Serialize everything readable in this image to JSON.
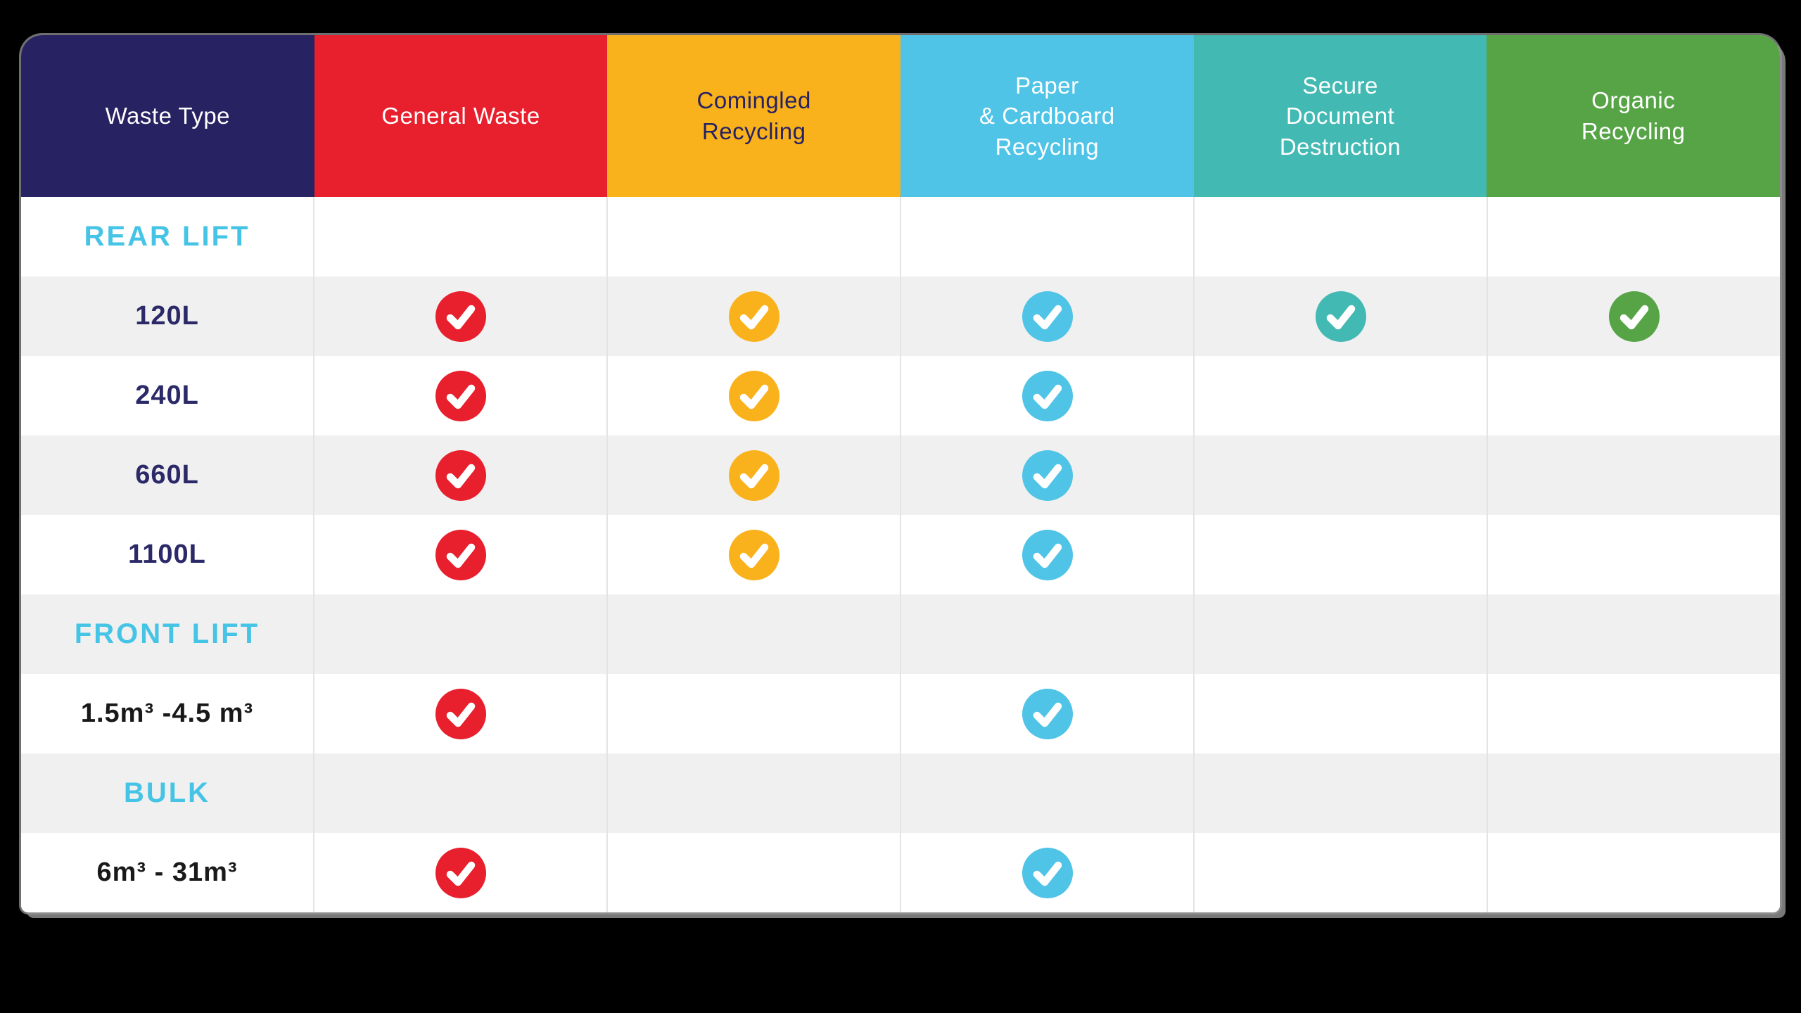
{
  "page": {
    "background_color": "#000000"
  },
  "card": {
    "background_color": "#FFFFFF",
    "shadow_color": "#8E8E8E"
  },
  "colors": {
    "divider": "#E4E4E4",
    "row_white": "#FFFFFF",
    "row_gray": "#F0F0F0",
    "section_label": "#45C4E6",
    "bin_label": "#2B2967",
    "volume_label": "#191919"
  },
  "header": {
    "columns": [
      {
        "id": "waste-type",
        "lines": [
          "Waste Type"
        ],
        "bg": "#272262",
        "fg": "#FFFFFF"
      },
      {
        "id": "general-waste",
        "lines": [
          "General Waste"
        ],
        "bg": "#E81F2D",
        "fg": "#FFFFFF"
      },
      {
        "id": "comingled-recycling",
        "lines": [
          "Comingled",
          "Recycling"
        ],
        "bg": "#FAB21C",
        "fg": "#272262"
      },
      {
        "id": "paper-cardboard-recycling",
        "lines": [
          "Paper",
          "& Cardboard",
          "Recycling"
        ],
        "bg": "#4FC4E7",
        "fg": "#FFFFFF"
      },
      {
        "id": "secure-document-destruction",
        "lines": [
          "Secure",
          "Document",
          "Destruction"
        ],
        "bg": "#42B9B2",
        "fg": "#FFFFFF"
      },
      {
        "id": "organic-recycling",
        "lines": [
          "Organic",
          "Recycling"
        ],
        "bg": "#56A446",
        "fg": "#FFFFFF"
      }
    ]
  },
  "rows": [
    {
      "type": "section",
      "label": "REAR LIFT",
      "label_color": "#45C4E6",
      "zebra": "white",
      "checks": [
        false,
        false,
        false,
        false,
        false
      ]
    },
    {
      "type": "item",
      "label": "120L",
      "label_color": "#2B2967",
      "zebra": "gray",
      "checks": [
        true,
        true,
        true,
        true,
        true
      ]
    },
    {
      "type": "item",
      "label": "240L",
      "label_color": "#2B2967",
      "zebra": "white",
      "checks": [
        true,
        true,
        true,
        false,
        false
      ]
    },
    {
      "type": "item",
      "label": "660L",
      "label_color": "#2B2967",
      "zebra": "gray",
      "checks": [
        true,
        true,
        true,
        false,
        false
      ]
    },
    {
      "type": "item",
      "label": "1100L",
      "label_color": "#2B2967",
      "zebra": "white",
      "checks": [
        true,
        true,
        true,
        false,
        false
      ]
    },
    {
      "type": "section",
      "label": "FRONT LIFT",
      "label_color": "#45C4E6",
      "zebra": "gray",
      "checks": [
        false,
        false,
        false,
        false,
        false
      ]
    },
    {
      "type": "item",
      "label": "1.5m³ -4.5 m³",
      "label_color": "#191919",
      "zebra": "white",
      "checks": [
        true,
        false,
        true,
        false,
        false
      ]
    },
    {
      "type": "section",
      "label": "BULK",
      "label_color": "#45C4E6",
      "zebra": "gray",
      "checks": [
        false,
        false,
        false,
        false,
        false
      ]
    },
    {
      "type": "item",
      "label": "6m³ - 31m³",
      "label_color": "#191919",
      "zebra": "white",
      "checks": [
        true,
        false,
        true,
        false,
        false
      ]
    }
  ],
  "icons": {
    "check": "check-circle-icon"
  },
  "chart_data": {
    "type": "table",
    "title": "Waste services availability by bin type",
    "columns": [
      "Waste Type",
      "General Waste",
      "Comingled Recycling",
      "Paper & Cardboard Recycling",
      "Secure Document Destruction",
      "Organic Recycling"
    ],
    "rows": [
      {
        "label": "REAR LIFT",
        "section": true,
        "values": [
          "",
          "",
          "",
          "",
          ""
        ]
      },
      {
        "label": "120L",
        "section": false,
        "values": [
          "yes",
          "yes",
          "yes",
          "yes",
          "yes"
        ]
      },
      {
        "label": "240L",
        "section": false,
        "values": [
          "yes",
          "yes",
          "yes",
          "",
          ""
        ]
      },
      {
        "label": "660L",
        "section": false,
        "values": [
          "yes",
          "yes",
          "yes",
          "",
          ""
        ]
      },
      {
        "label": "1100L",
        "section": false,
        "values": [
          "yes",
          "yes",
          "yes",
          "",
          ""
        ]
      },
      {
        "label": "FRONT LIFT",
        "section": true,
        "values": [
          "",
          "",
          "",
          "",
          ""
        ]
      },
      {
        "label": "1.5m³ -4.5 m³",
        "section": false,
        "values": [
          "yes",
          "",
          "yes",
          "",
          ""
        ]
      },
      {
        "label": "BULK",
        "section": true,
        "values": [
          "",
          "",
          "",
          "",
          ""
        ]
      },
      {
        "label": "6m³ - 31m³",
        "section": false,
        "values": [
          "yes",
          "",
          "yes",
          "",
          ""
        ]
      }
    ],
    "legend": "colored circle with white checkmark = service available; check color matches column header color",
    "grid": "zebra rows (white / light gray), thin light-gray vertical column dividers"
  }
}
